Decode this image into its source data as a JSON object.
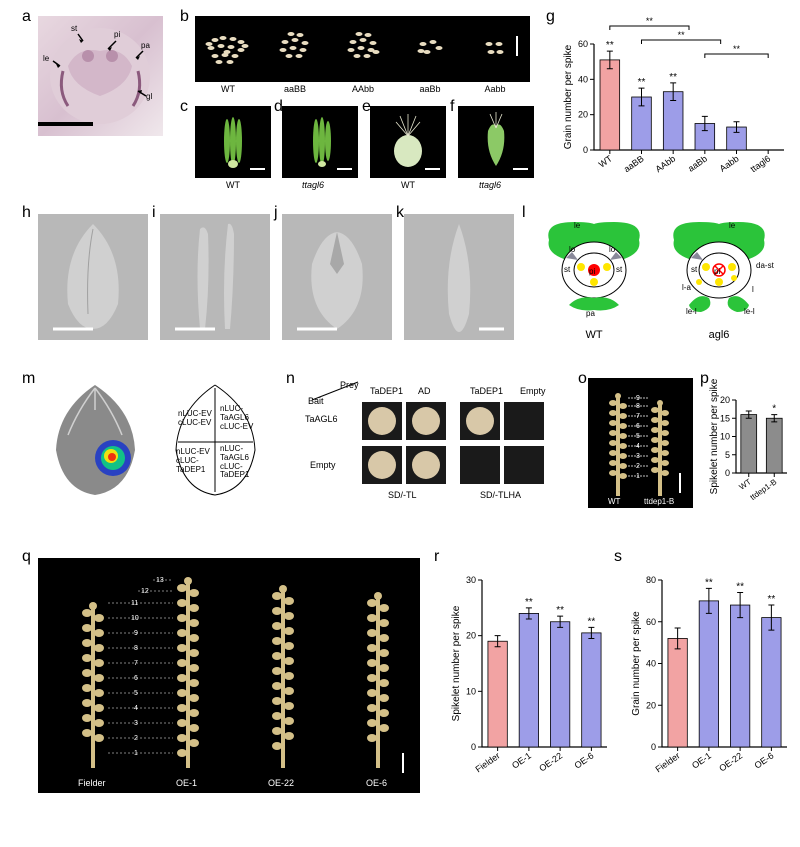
{
  "panels": {
    "a": {
      "label": "a",
      "annotations": [
        "le",
        "st",
        "pi",
        "pa",
        "gl"
      ]
    },
    "b": {
      "label": "b",
      "samples": [
        "WT",
        "aaBB",
        "AAbb",
        "aaBb",
        "Aabb"
      ]
    },
    "c": {
      "label": "c",
      "caption": "WT"
    },
    "d": {
      "label": "d",
      "caption": "ttagl6"
    },
    "e": {
      "label": "e",
      "caption": "WT"
    },
    "f": {
      "label": "f",
      "caption": "ttagl6"
    },
    "g": {
      "label": "g",
      "ylabel": "Grain number per spike",
      "ylim": [
        0,
        60
      ],
      "ytick_step": 20,
      "categories": [
        "WT",
        "aaBB",
        "AAbb",
        "aaBb",
        "Aabb",
        "ttagl6"
      ],
      "values": [
        51,
        30,
        33,
        15,
        13,
        0
      ],
      "errors": [
        5,
        5,
        5,
        4,
        3,
        0
      ],
      "bar_colors": [
        "#f2a3a3",
        "#9d9de8",
        "#9d9de8",
        "#9d9de8",
        "#9d9de8",
        "#9d9de8"
      ],
      "sig_marks": [
        "**",
        "**",
        "**"
      ]
    },
    "h": {
      "label": "h"
    },
    "i": {
      "label": "i"
    },
    "j": {
      "label": "j"
    },
    "k": {
      "label": "k"
    },
    "l": {
      "label": "l",
      "left_caption": "WT",
      "right_caption": "agl6",
      "left_labels": [
        "le",
        "lo",
        "st",
        "pi",
        "pa"
      ],
      "right_labels": [
        "le",
        "da-st",
        "st",
        "pi",
        "l-a",
        "le-l"
      ],
      "green": "#2bc43a",
      "yellow": "#ffe600",
      "red": "#ff0000"
    },
    "m": {
      "label": "m",
      "quad_labels": [
        "nLUC-EV\ncLUC-EV",
        "nLUC-\nTaAGL6\ncLUC-EV",
        "nLUC-EV\ncLUC-\nTaDEP1",
        "nLUC-\nTaAGL6\ncLUC-\nTaDEP1"
      ]
    },
    "n": {
      "label": "n",
      "prey": "Prey",
      "bait": "Bait",
      "cols": [
        "TaDEP1",
        "AD",
        "TaDEP1",
        "Empty"
      ],
      "rows": [
        "TaAGL6",
        "Empty"
      ],
      "media": [
        "SD/-TL",
        "SD/-TLHA"
      ]
    },
    "o": {
      "label": "o",
      "left_caption": "WT",
      "right_caption": "ttdep1-B",
      "numbers": [
        "1",
        "2",
        "3",
        "4",
        "5",
        "6",
        "7",
        "8",
        "9"
      ]
    },
    "p": {
      "label": "p",
      "ylabel": "Spikelet number per spike",
      "ylim": [
        0,
        20
      ],
      "ytick_step": 5,
      "categories": [
        "WT",
        "ttdep1-B"
      ],
      "values": [
        16,
        15
      ],
      "errors": [
        1,
        1
      ],
      "bar_colors": [
        "#8c8c8c",
        "#8c8c8c"
      ],
      "sig_marks": [
        "",
        "*"
      ]
    },
    "q": {
      "label": "q",
      "samples": [
        "Fielder",
        "OE-1",
        "OE-22",
        "OE-6"
      ],
      "numbers": [
        "1",
        "2",
        "3",
        "4",
        "5",
        "6",
        "7",
        "8",
        "9",
        "10",
        "11",
        "12",
        "13"
      ]
    },
    "r": {
      "label": "r",
      "ylabel": "Spikelet number per spike",
      "ylim": [
        0,
        30
      ],
      "ytick_step": 10,
      "categories": [
        "Fielder",
        "OE-1",
        "OE-22",
        "OE-6"
      ],
      "values": [
        19,
        24,
        22.5,
        20.5
      ],
      "errors": [
        1,
        1,
        1,
        1
      ],
      "bar_colors": [
        "#f2a3a3",
        "#9d9de8",
        "#9d9de8",
        "#9d9de8"
      ],
      "sig_marks": [
        "",
        "**",
        "**",
        "**"
      ]
    },
    "s": {
      "label": "s",
      "ylabel": "Grain number per spike",
      "ylim": [
        0,
        80
      ],
      "ytick_step": 20,
      "categories": [
        "Fielder",
        "OE-1",
        "OE-22",
        "OE-6"
      ],
      "values": [
        52,
        70,
        68,
        62
      ],
      "errors": [
        5,
        6,
        6,
        6
      ],
      "bar_colors": [
        "#f2a3a3",
        "#9d9de8",
        "#9d9de8",
        "#9d9de8"
      ],
      "sig_marks": [
        "",
        "**",
        "**",
        "**"
      ]
    }
  },
  "colors": {
    "bg_black": "#000000",
    "pale_tan": "#e8dcc0",
    "green_stamen": "#6db63f",
    "gray_sem": "#b8b8b8",
    "leaf_gray": "#9a9a9a"
  }
}
